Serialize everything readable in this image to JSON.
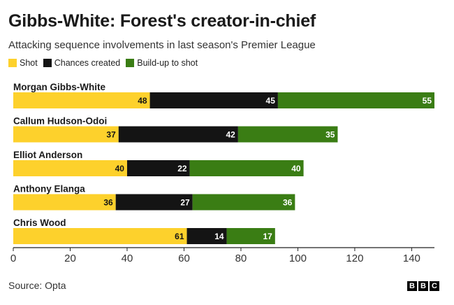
{
  "title": "Gibbs-White: Forest's creator-in-chief",
  "subtitle": "Attacking sequence involvements in last season's Premier League",
  "source": "Source: Opta",
  "logo": [
    "B",
    "B",
    "C"
  ],
  "colors": {
    "shot": "#fdd12c",
    "chances": "#141414",
    "buildup": "#3a7d14",
    "axis": "#222222"
  },
  "chart_data": {
    "type": "bar",
    "orientation": "horizontal",
    "stacked": true,
    "categories": [
      "Morgan Gibbs-White",
      "Callum Hudson-Odoi",
      "Elliot Anderson",
      "Anthony Elanga",
      "Chris Wood"
    ],
    "series": [
      {
        "name": "Shot",
        "values": [
          48,
          37,
          40,
          36,
          61
        ]
      },
      {
        "name": "Chances created",
        "values": [
          45,
          42,
          22,
          27,
          14
        ]
      },
      {
        "name": "Build-up to shot",
        "values": [
          55,
          35,
          40,
          36,
          17
        ]
      }
    ],
    "xlim": [
      0,
      148
    ],
    "xticks": [
      "0",
      "20",
      "40",
      "60",
      "80",
      "100",
      "120",
      "140"
    ],
    "xlabel": "",
    "ylabel": "",
    "legend_position": "top-left",
    "grid": false
  }
}
